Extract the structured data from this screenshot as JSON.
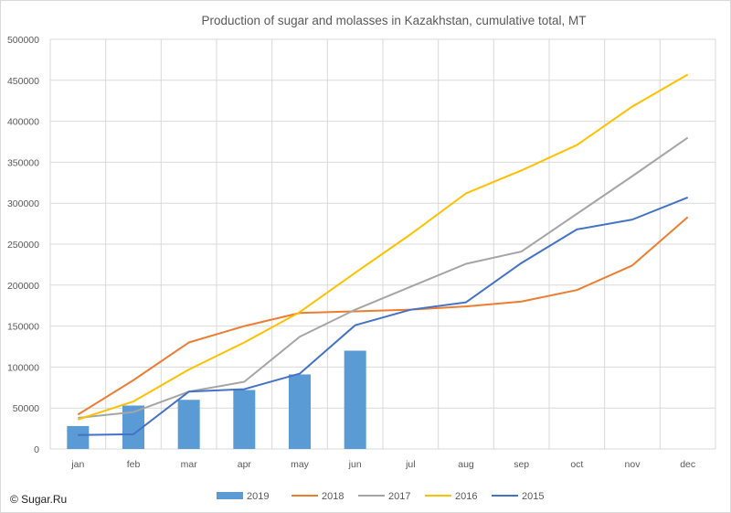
{
  "chart_data": {
    "type": "line",
    "title": "Production of sugar and molasses in Kazakhstan, cumulative total, MT",
    "categories": [
      "jan",
      "feb",
      "mar",
      "apr",
      "may",
      "jun",
      "jul",
      "aug",
      "sep",
      "oct",
      "nov",
      "dec"
    ],
    "ylim": [
      0,
      500000
    ],
    "yticks": [
      "0",
      "50000",
      "100000",
      "150000",
      "200000",
      "250000",
      "300000",
      "350000",
      "400000",
      "450000",
      "500000"
    ],
    "grid": true,
    "legend_position": "bottom",
    "series": [
      {
        "name": "2019",
        "kind": "bar",
        "color": "#5b9bd5",
        "values": [
          28000,
          53000,
          60000,
          72000,
          91000,
          120000,
          null,
          null,
          null,
          null,
          null,
          null
        ]
      },
      {
        "name": "2018",
        "kind": "line",
        "color": "#ed7d31",
        "values": [
          42000,
          84000,
          130000,
          150000,
          166000,
          168000,
          170000,
          174000,
          180000,
          194000,
          224000,
          283000
        ]
      },
      {
        "name": "2017",
        "kind": "line",
        "color": "#a5a5a5",
        "values": [
          38000,
          45000,
          70000,
          82000,
          137000,
          170000,
          198000,
          226000,
          241000,
          287000,
          333000,
          380000
        ]
      },
      {
        "name": "2016",
        "kind": "line",
        "color": "#ffc000",
        "values": [
          36000,
          58000,
          97000,
          130000,
          167000,
          215000,
          262000,
          312000,
          340000,
          371000,
          418000,
          457000
        ]
      },
      {
        "name": "2015",
        "kind": "line",
        "color": "#4472c4",
        "values": [
          17000,
          18000,
          70000,
          73000,
          92000,
          151000,
          170000,
          179000,
          227000,
          268000,
          280000,
          307000
        ]
      }
    ]
  },
  "credit": "© Sugar.Ru"
}
